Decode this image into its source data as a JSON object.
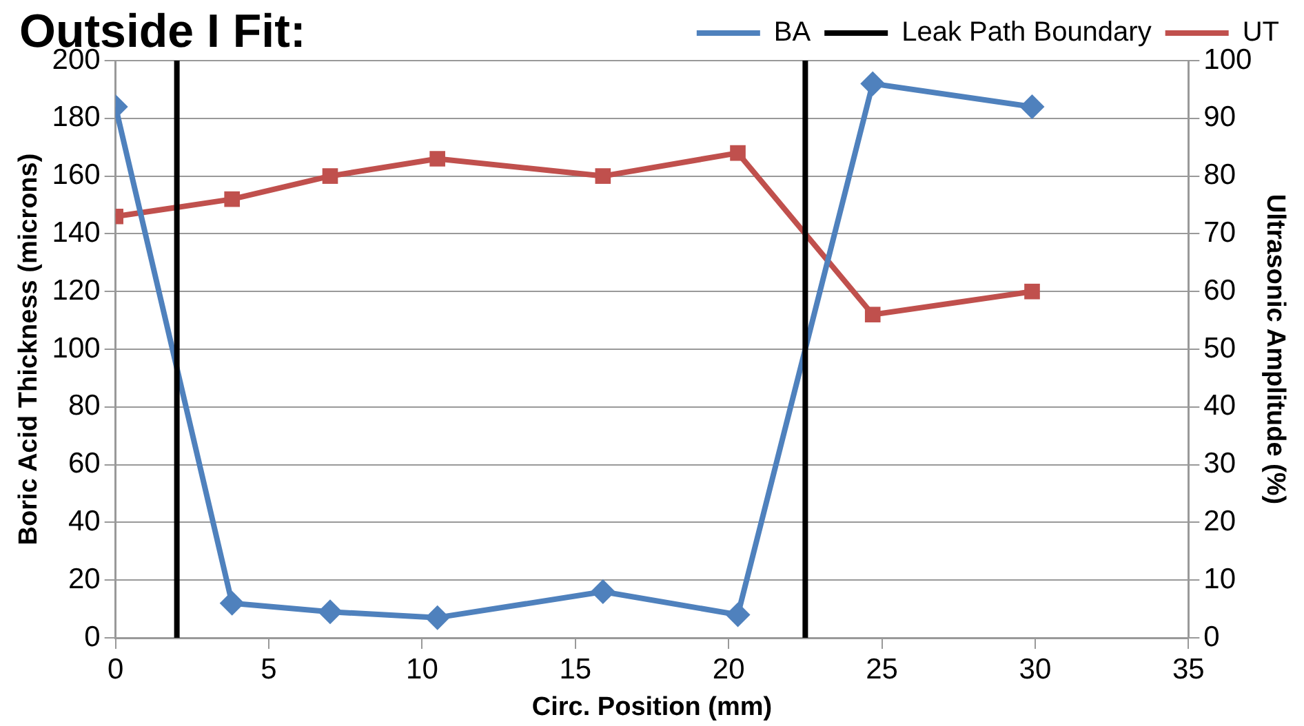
{
  "chart_data": {
    "type": "line",
    "title": "Outside I Fit:",
    "xlabel": "Circ. Position (mm)",
    "ylabel": "Boric Acid Thickness (microns)",
    "y2label": "Ultrasonic Amplitude (%)",
    "series": [
      {
        "name": "BA",
        "color": "#4f81bd",
        "marker": "diamond",
        "x": [
          0,
          3.8,
          7.0,
          10.5,
          15.9,
          20.3,
          24.7,
          29.9
        ],
        "values": [
          184,
          12,
          9,
          7,
          16,
          8,
          192,
          184
        ]
      },
      {
        "name": "UT",
        "color": "#c0504d",
        "marker": "square",
        "axis": "y2",
        "x": [
          0,
          3.8,
          7.0,
          10.5,
          15.9,
          20.3,
          24.7,
          29.9
        ],
        "values": [
          73,
          76,
          80,
          83,
          80,
          84,
          56,
          60
        ]
      }
    ],
    "ref_lines": [
      {
        "axis": "x",
        "value": 2,
        "label": "Leak Path Boundary",
        "color": "#000000"
      },
      {
        "axis": "x",
        "value": 22.5,
        "color": "#000000"
      }
    ],
    "xlim": [
      0,
      35
    ],
    "xticks": [
      0,
      5,
      10,
      15,
      20,
      25,
      30,
      35
    ],
    "ylim": [
      0,
      200
    ],
    "yticks": [
      0,
      20,
      40,
      60,
      80,
      100,
      120,
      140,
      160,
      180,
      200
    ],
    "y2lim": [
      0,
      100
    ],
    "y2ticks": [
      0,
      10,
      20,
      30,
      40,
      50,
      60,
      70,
      80,
      90,
      100
    ],
    "grid": "y",
    "legend": "top",
    "line_style": "solid"
  }
}
